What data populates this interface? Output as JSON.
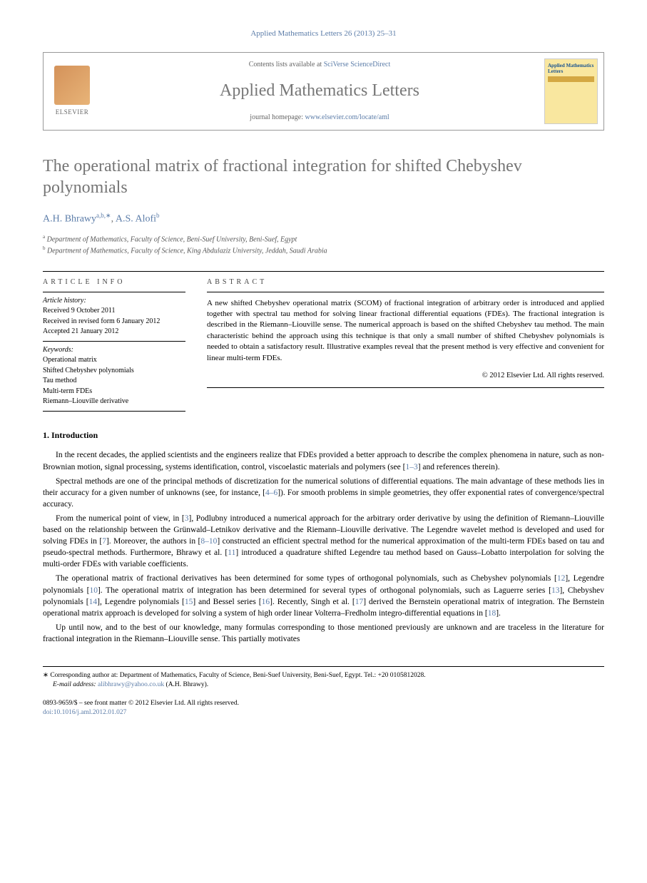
{
  "citation": "Applied Mathematics Letters 26 (2013) 25–31",
  "header": {
    "contents_prefix": "Contents lists available at ",
    "contents_link": "SciVerse ScienceDirect",
    "journal": "Applied Mathematics Letters",
    "homepage_prefix": "journal homepage: ",
    "homepage_link": "www.elsevier.com/locate/aml",
    "publisher": "ELSEVIER",
    "cover_title": "Applied Mathematics Letters"
  },
  "title": "The operational matrix of fractional integration for shifted Chebyshev polynomials",
  "authors": [
    {
      "name": "A.H. Bhrawy",
      "affil": "a,b,",
      "corr": "∗"
    },
    {
      "name": "A.S. Alofi",
      "affil": "b",
      "corr": ""
    }
  ],
  "author_sep": ", ",
  "affiliations": [
    {
      "marker": "a",
      "text": "Department of Mathematics, Faculty of Science, Beni-Suef University, Beni-Suef, Egypt"
    },
    {
      "marker": "b",
      "text": "Department of Mathematics, Faculty of Science, King Abdulaziz University, Jeddah, Saudi Arabia"
    }
  ],
  "info": {
    "label": "ARTICLE INFO",
    "history_label": "Article history:",
    "history": [
      "Received 9 October 2011",
      "Received in revised form 6 January 2012",
      "Accepted 21 January 2012"
    ],
    "keywords_label": "Keywords:",
    "keywords": [
      "Operational matrix",
      "Shifted Chebyshev polynomials",
      "Tau method",
      "Multi-term FDEs",
      "Riemann–Liouville derivative"
    ]
  },
  "abstract": {
    "label": "ABSTRACT",
    "text": "A new shifted Chebyshev operational matrix (SCOM) of fractional integration of arbitrary order is introduced and applied together with spectral tau method for solving linear fractional differential equations (FDEs). The fractional integration is described in the Riemann–Liouville sense. The numerical approach is based on the shifted Chebyshev tau method. The main characteristic behind the approach using this technique is that only a small number of shifted Chebyshev polynomials is needed to obtain a satisfactory result. Illustrative examples reveal that the present method is very effective and convenient for linear multi-term FDEs.",
    "copyright": "© 2012 Elsevier Ltd. All rights reserved."
  },
  "intro": {
    "heading": "1. Introduction",
    "paragraphs": [
      "In the recent decades, the applied scientists and the engineers realize that FDEs provided a better approach to describe the complex phenomena in nature, such as non-Brownian motion, signal processing, systems identification, control, viscoelastic materials and polymers (see [1–3] and references therein).",
      "Spectral methods are one of the principal methods of discretization for the numerical solutions of differential equations. The main advantage of these methods lies in their accuracy for a given number of unknowns (see, for instance, [4–6]). For smooth problems in simple geometries, they offer exponential rates of convergence/spectral accuracy.",
      "From the numerical point of view, in [3], Podlubny introduced a numerical approach for the arbitrary order derivative by using the definition of Riemann–Liouville based on the relationship between the Grünwald–Letnikov derivative and the Riemann–Liouville derivative. The Legendre wavelet method is developed and used for solving FDEs in [7]. Moreover, the authors in [8–10] constructed an efficient spectral method for the numerical approximation of the multi-term FDEs based on tau and pseudo-spectral methods. Furthermore, Bhrawy et al. [11] introduced a quadrature shifted Legendre tau method based on Gauss–Lobatto interpolation for solving the multi-order FDEs with variable coefficients.",
      "The operational matrix of fractional derivatives has been determined for some types of orthogonal polynomials, such as Chebyshev polynomials [12], Legendre polynomials [10]. The operational matrix of integration has been determined for several types of orthogonal polynomials, such as Laguerre series [13], Chebyshev polynomials [14], Legendre polynomials [15] and Bessel series [16]. Recently, Singh et al. [17] derived the Bernstein operational matrix of integration. The Bernstein operational matrix approach is developed for solving a system of high order linear Volterra–Fredholm integro-differential equations in [18].",
      "Up until now, and to the best of our knowledge, many formulas corresponding to those mentioned previously are unknown and are traceless in the literature for fractional integration in the Riemann–Liouville sense. This partially motivates"
    ],
    "ref_links": [
      "1–3",
      "4–6",
      "3",
      "7",
      "8–10",
      "11",
      "12",
      "10",
      "13",
      "14",
      "15",
      "16",
      "17",
      "18"
    ]
  },
  "footnotes": {
    "corr_marker": "∗",
    "corr_text": "Corresponding author at: Department of Mathematics, Faculty of Science, Beni-Suef University, Beni-Suef, Egypt. Tel.: +20 0105812028.",
    "email_label": "E-mail address:",
    "email": "alibhrawy@yahoo.co.uk",
    "email_attrib": "(A.H. Bhrawy)."
  },
  "bottom": {
    "issn_line": "0893-9659/$ – see front matter © 2012 Elsevier Ltd. All rights reserved.",
    "doi_label": "doi:",
    "doi": "10.1016/j.aml.2012.01.027"
  }
}
